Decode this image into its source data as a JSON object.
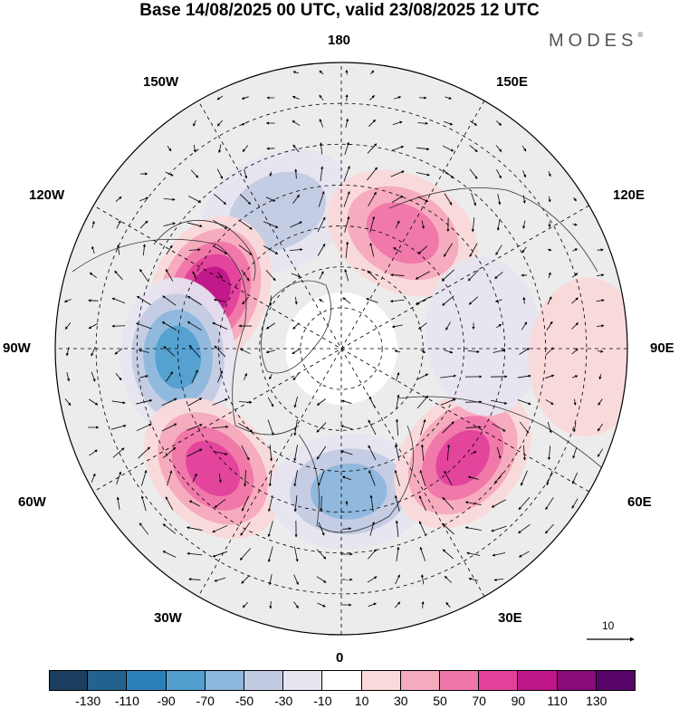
{
  "title": "Base 14/08/2025 00 UTC, valid 23/08/2025 12 UTC",
  "brand": "MODES",
  "brand_mark": "®",
  "longitude_labels": {
    "deg180": "180",
    "deg150w": "150W",
    "deg150e": "150E",
    "deg120w": "120W",
    "deg120e": "120E",
    "deg90w": "90W",
    "deg90e": "90E",
    "deg60w": "60W",
    "deg60e": "60E",
    "deg30w": "30W",
    "deg30e": "30E",
    "deg0": "0"
  },
  "reference_vector": {
    "label": "10"
  },
  "colorbar": {
    "colors": [
      "#1b3f5e",
      "#23628f",
      "#2c80b9",
      "#529fcf",
      "#8db7dc",
      "#c3cbe3",
      "#e6e5f0",
      "#ffffff",
      "#fad9da",
      "#f6aabd",
      "#ef76a9",
      "#e2419b",
      "#bf168a",
      "#8a0b79",
      "#57036a"
    ],
    "tick_labels": [
      "-130",
      "-110",
      "-90",
      "-70",
      "-50",
      "-30",
      "-10",
      "10",
      "30",
      "50",
      "70",
      "90",
      "110",
      "130"
    ]
  },
  "anomaly_centers": [
    {
      "name": "negative-150w",
      "sign": "negative",
      "lon": -155,
      "lat": 53,
      "peak": -50
    },
    {
      "name": "positive-120w",
      "sign": "positive",
      "lon": -113,
      "lat": 55,
      "peak": 100
    },
    {
      "name": "negative-90w",
      "sign": "negative",
      "lon": -87,
      "lat": 50,
      "peak": -90
    },
    {
      "name": "positive-50w",
      "sign": "positive",
      "lon": -47,
      "lat": 47,
      "peak": 90
    },
    {
      "name": "negative-5e",
      "sign": "negative",
      "lon": 3,
      "lat": 55,
      "peak": -70
    },
    {
      "name": "positive-50e",
      "sign": "positive",
      "lon": 48,
      "lat": 50,
      "peak": 90
    },
    {
      "name": "positive-150e",
      "sign": "positive",
      "lon": 152,
      "lat": 58,
      "peak": 70
    },
    {
      "name": "negative-90e",
      "sign": "negative",
      "lon": 95,
      "lat": 55,
      "peak": -30
    },
    {
      "name": "positive-90e-lowlat",
      "sign": "positive",
      "lon": 88,
      "lat": 30,
      "peak": 30
    }
  ]
}
